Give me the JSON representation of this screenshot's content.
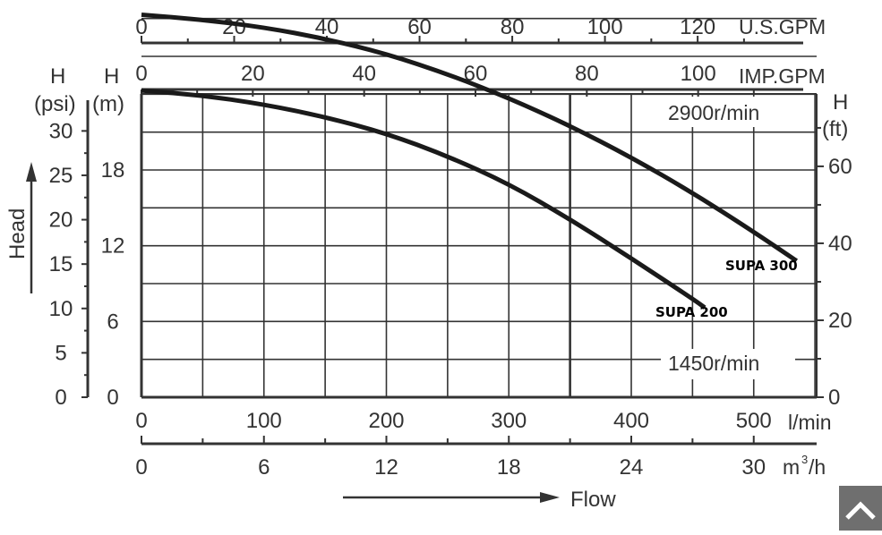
{
  "colors": {
    "axis": "#333333",
    "grid": "#333333",
    "curve": "#1a1a1a",
    "background": "#ffffff",
    "scroll_button": "#6f6f6f"
  },
  "axis_labels": {
    "us_gpm": "U.S.GPM",
    "imp_gpm": "IMP.GPM",
    "psi_top": "H",
    "psi_bottom": "(psi)",
    "m_top": "H",
    "m_bottom": "(m)",
    "ft_top": "H",
    "ft_bottom": "(ft)",
    "lmin": "l/min",
    "m3h_base": "m",
    "m3h_sup": "3",
    "m3h_tail": "/h",
    "head": "Head",
    "flow": "Flow"
  },
  "speed_labels": {
    "high": "2900r/min",
    "low": "1450r/min"
  },
  "scroll_button_icon": "chevron-up-icon",
  "chart_data": {
    "type": "line",
    "x_unit": "l/min",
    "y_unit": "m",
    "xlim": [
      0,
      550
    ],
    "ylim": [
      0,
      33
    ],
    "grid": true,
    "series": [
      {
        "name": "SUPA 300",
        "x": [
          0,
          50,
          100,
          150,
          200,
          250,
          300,
          350,
          400,
          450,
          500,
          535
        ],
        "y": [
          30.3,
          29.9,
          29.3,
          28.4,
          27.2,
          25.6,
          23.7,
          21.5,
          19.0,
          16.2,
          13.1,
          10.8
        ]
      },
      {
        "name": "SUPA 200",
        "x": [
          0,
          50,
          100,
          150,
          200,
          250,
          300,
          350,
          400,
          450,
          460
        ],
        "y": [
          24.3,
          23.9,
          23.2,
          22.2,
          20.9,
          19.1,
          16.9,
          14.1,
          11.0,
          7.8,
          7.1
        ]
      }
    ],
    "ticks": {
      "lmin": [
        "0",
        "100",
        "200",
        "300",
        "400",
        "500"
      ],
      "m3h": [
        "0",
        "6",
        "12",
        "18",
        "24",
        "30"
      ],
      "us_gpm": [
        "0",
        "20",
        "40",
        "60",
        "80",
        "100",
        "120"
      ],
      "imp_gpm": [
        "0",
        "20",
        "40",
        "60",
        "80",
        "100"
      ],
      "m": [
        "0",
        "6",
        "12",
        "18"
      ],
      "psi": [
        "0",
        "5",
        "10",
        "15",
        "20",
        "25",
        "30"
      ],
      "ft": [
        "0",
        "20",
        "40",
        "60"
      ]
    }
  }
}
